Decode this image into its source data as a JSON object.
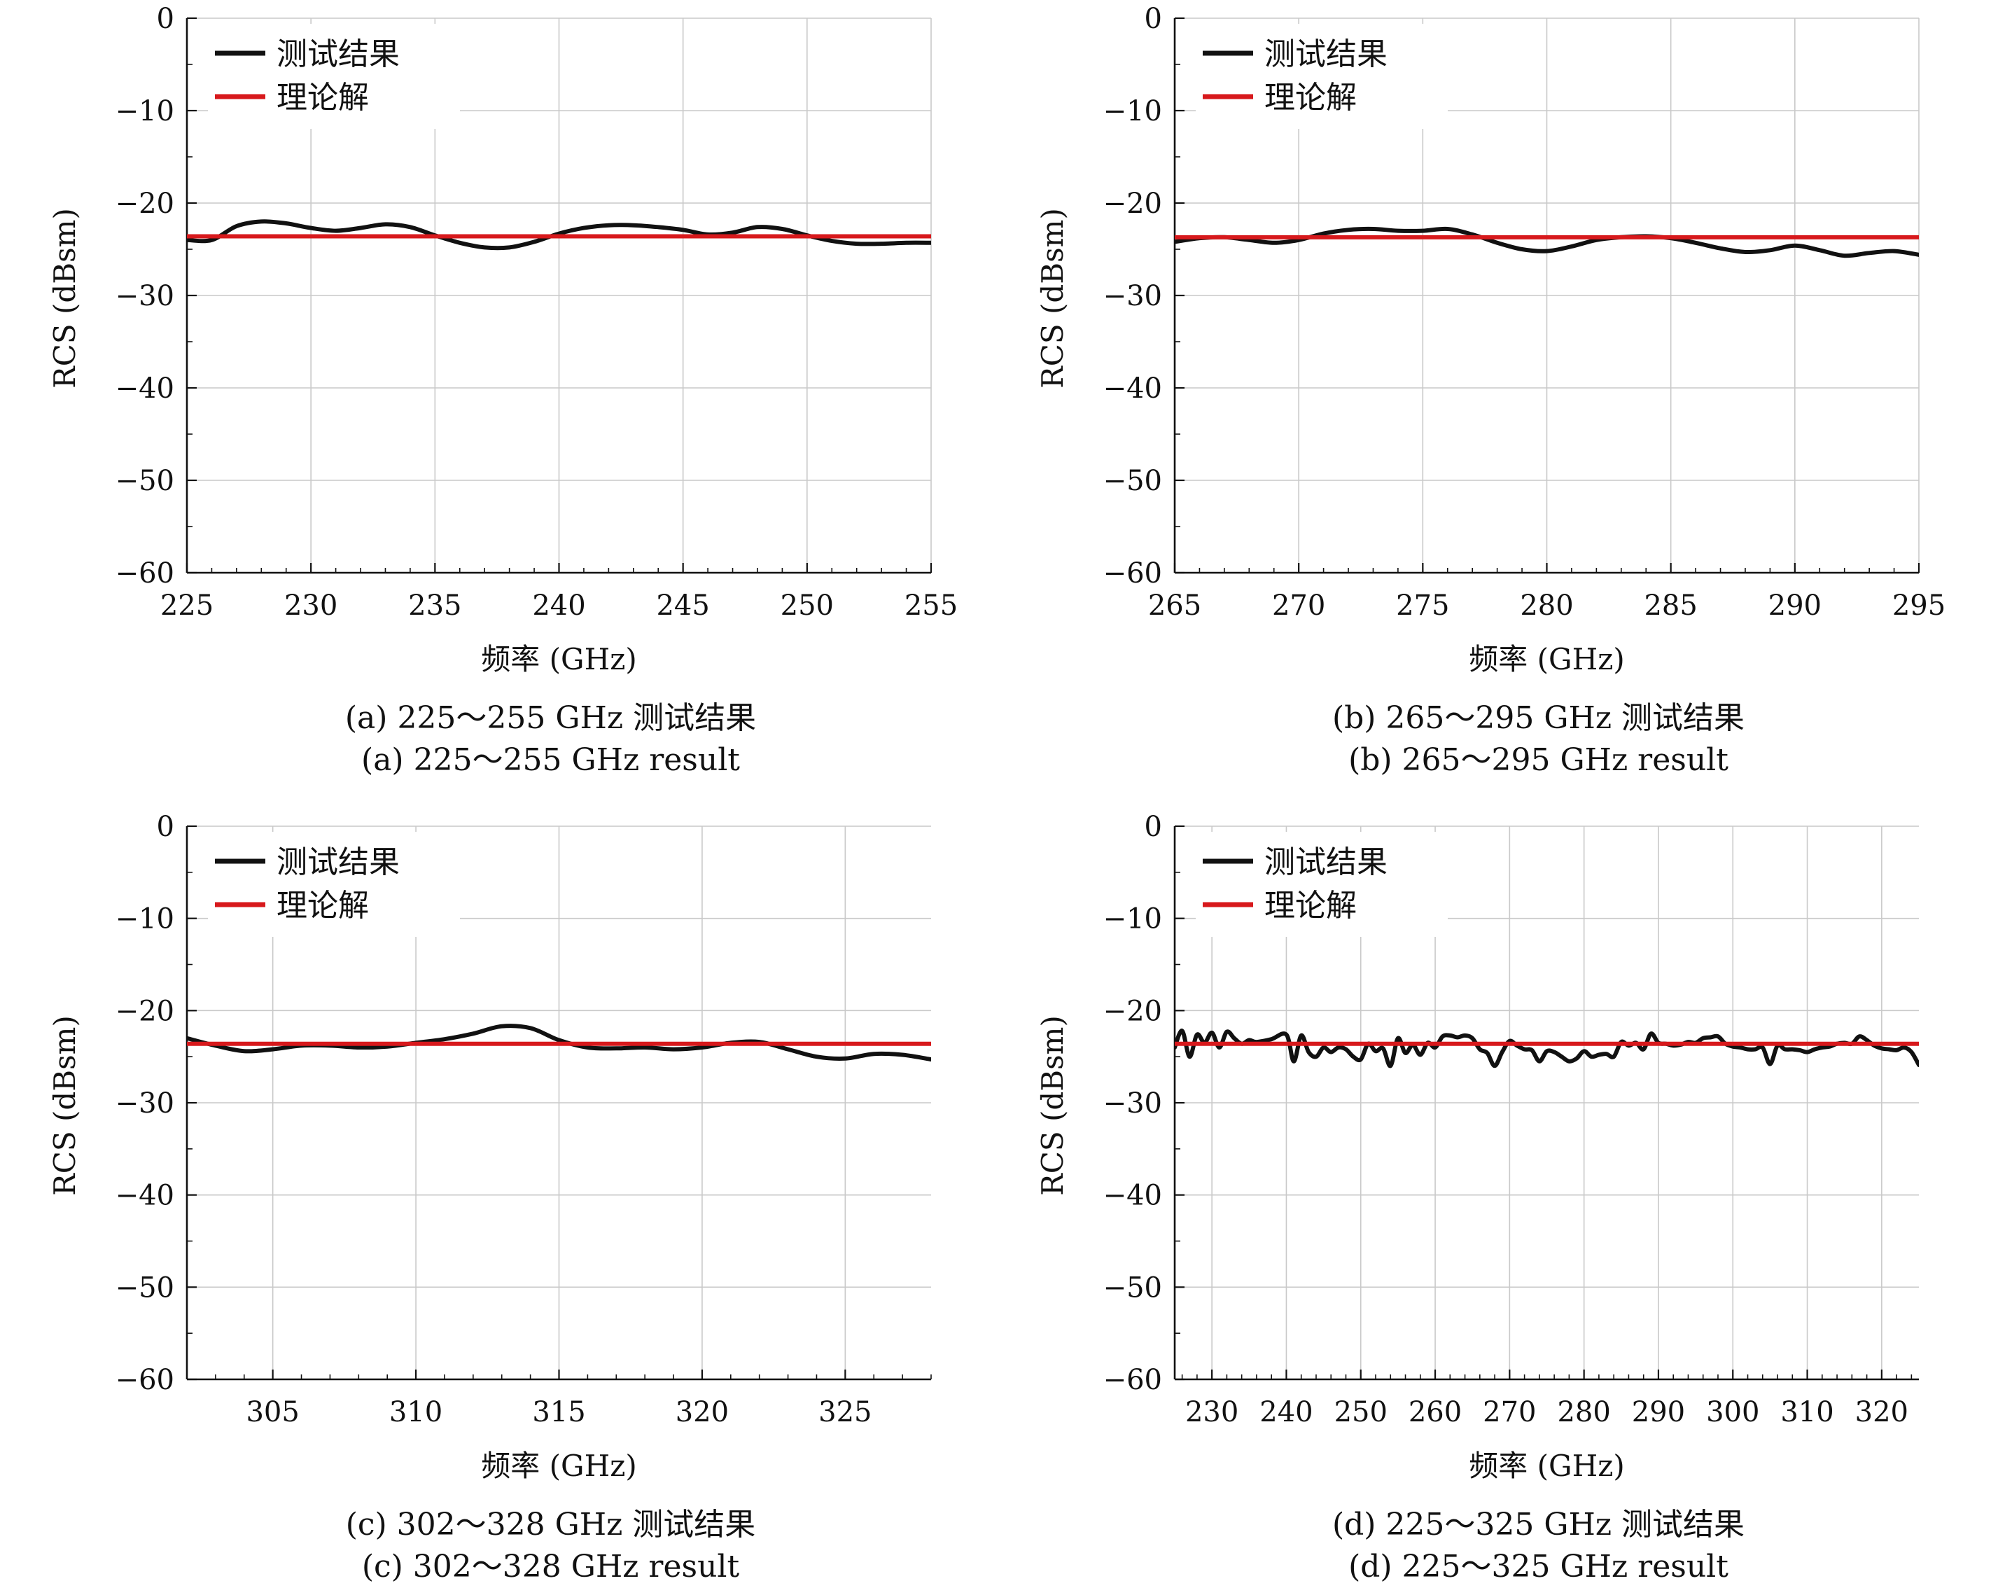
{
  "chart_data": [
    {
      "id": "a",
      "type": "line",
      "xlabel": "频率 (GHz)",
      "ylabel": "RCS (dBsm)",
      "xlim": [
        225,
        255
      ],
      "ylim": [
        -60,
        0
      ],
      "xticks": [
        225,
        230,
        235,
        240,
        245,
        250,
        255
      ],
      "yticks": [
        0,
        -10,
        -20,
        -30,
        -40,
        -50,
        -60
      ],
      "grid": true,
      "legend_position": "top-left",
      "caption_cn": "(a) 225～255 GHz 测试结果",
      "caption_en": "(a) 225～255 GHz result",
      "series": [
        {
          "name": "测试结果",
          "color": "#111111",
          "x": [
            225,
            226,
            227,
            228,
            229,
            230,
            231,
            232,
            233,
            234,
            235,
            236,
            237,
            238,
            239,
            240,
            241,
            242,
            243,
            244,
            245,
            246,
            247,
            248,
            249,
            250,
            251,
            252,
            253,
            254,
            255
          ],
          "y": [
            -24,
            -24,
            -22.5,
            -22,
            -22.2,
            -22.7,
            -23,
            -22.7,
            -22.3,
            -22.6,
            -23.5,
            -24.3,
            -24.8,
            -24.8,
            -24.2,
            -23.3,
            -22.7,
            -22.4,
            -22.4,
            -22.6,
            -22.9,
            -23.4,
            -23.2,
            -22.6,
            -22.8,
            -23.5,
            -24.1,
            -24.4,
            -24.4,
            -24.3,
            -24.3
          ]
        },
        {
          "name": "理论解",
          "color": "#d7191c",
          "x": [
            225,
            255
          ],
          "y": [
            -23.6,
            -23.6
          ]
        }
      ]
    },
    {
      "id": "b",
      "type": "line",
      "xlabel": "频率 (GHz)",
      "ylabel": "RCS (dBsm)",
      "xlim": [
        265,
        295
      ],
      "ylim": [
        -60,
        0
      ],
      "xticks": [
        265,
        270,
        275,
        280,
        285,
        290,
        295
      ],
      "yticks": [
        0,
        -10,
        -20,
        -30,
        -40,
        -50,
        -60
      ],
      "grid": true,
      "legend_position": "top-left",
      "caption_cn": "(b) 265～295 GHz 测试结果",
      "caption_en": "(b) 265～295 GHz result",
      "series": [
        {
          "name": "测试结果",
          "color": "#111111",
          "x": [
            265,
            266,
            267,
            268,
            269,
            270,
            271,
            272,
            273,
            274,
            275,
            276,
            277,
            278,
            279,
            280,
            281,
            282,
            283,
            284,
            285,
            286,
            287,
            288,
            289,
            290,
            291,
            292,
            293,
            294,
            295
          ],
          "y": [
            -24.2,
            -23.8,
            -23.7,
            -24,
            -24.3,
            -24,
            -23.3,
            -22.9,
            -22.8,
            -23,
            -23,
            -22.8,
            -23.4,
            -24.3,
            -25,
            -25.2,
            -24.7,
            -24,
            -23.7,
            -23.6,
            -23.8,
            -24.3,
            -24.9,
            -25.3,
            -25.1,
            -24.6,
            -25.1,
            -25.7,
            -25.4,
            -25.2,
            -25.6
          ]
        },
        {
          "name": "理论解",
          "color": "#d7191c",
          "x": [
            265,
            295
          ],
          "y": [
            -23.7,
            -23.7
          ]
        }
      ]
    },
    {
      "id": "c",
      "type": "line",
      "xlabel": "频率 (GHz)",
      "ylabel": "RCS (dBsm)",
      "xlim": [
        302,
        328
      ],
      "ylim": [
        -60,
        0
      ],
      "xticks": [
        305,
        310,
        315,
        320,
        325
      ],
      "yticks": [
        0,
        -10,
        -20,
        -30,
        -40,
        -50,
        -60
      ],
      "grid": true,
      "legend_position": "top-left",
      "caption_cn": "(c) 302～328 GHz 测试结果",
      "caption_en": "(c) 302～328 GHz result",
      "series": [
        {
          "name": "测试结果",
          "color": "#111111",
          "x": [
            302,
            303,
            304,
            305,
            306,
            307,
            308,
            309,
            310,
            311,
            312,
            313,
            314,
            315,
            316,
            317,
            318,
            319,
            320,
            321,
            322,
            323,
            324,
            325,
            326,
            327,
            328
          ],
          "y": [
            -23,
            -23.8,
            -24.4,
            -24.2,
            -23.8,
            -23.8,
            -24,
            -23.9,
            -23.5,
            -23.1,
            -22.5,
            -21.7,
            -21.9,
            -23.2,
            -24,
            -24.1,
            -24,
            -24.2,
            -24,
            -23.5,
            -23.4,
            -24.2,
            -25,
            -25.2,
            -24.7,
            -24.8,
            -25.3
          ]
        },
        {
          "name": "理论解",
          "color": "#d7191c",
          "x": [
            302,
            328
          ],
          "y": [
            -23.6,
            -23.6
          ]
        }
      ]
    },
    {
      "id": "d",
      "type": "line",
      "xlabel": "频率 (GHz)",
      "ylabel": "RCS (dBsm)",
      "xlim": [
        225,
        325
      ],
      "ylim": [
        -60,
        0
      ],
      "xticks": [
        230,
        240,
        250,
        260,
        270,
        280,
        290,
        300,
        310,
        320
      ],
      "yticks": [
        0,
        -10,
        -20,
        -30,
        -40,
        -50,
        -60
      ],
      "grid": true,
      "legend_position": "top-left",
      "caption_cn": "(d) 225～325 GHz 测试结果",
      "caption_en": "(d) 225～325 GHz result",
      "series": [
        {
          "name": "测试结果",
          "color": "#111111",
          "x": [
            225,
            226,
            227,
            228,
            229,
            230,
            231,
            232,
            233,
            234,
            235,
            236,
            238,
            240,
            241,
            242,
            243,
            244,
            245,
            246,
            247,
            248,
            249,
            250,
            251,
            252,
            253,
            254,
            255,
            256,
            257,
            258,
            259,
            260,
            261,
            262,
            263,
            264,
            265,
            266,
            267,
            268,
            269,
            270,
            271,
            272,
            273,
            274,
            275,
            276,
            277,
            278,
            279,
            280,
            281,
            282,
            283,
            284,
            285,
            286,
            287,
            288,
            289,
            290,
            291,
            292,
            293,
            294,
            295,
            296,
            297,
            298,
            299,
            300,
            301,
            302,
            303,
            304,
            305,
            306,
            307,
            308,
            309,
            310,
            311,
            312,
            313,
            314,
            315,
            316,
            317,
            318,
            319,
            320,
            321,
            322,
            323,
            324,
            325
          ],
          "y": [
            -24,
            -22.2,
            -25,
            -22.6,
            -23.5,
            -22.4,
            -24,
            -22.3,
            -23,
            -23.6,
            -23.2,
            -23.4,
            -23.1,
            -22.6,
            -25.5,
            -22.7,
            -24.5,
            -25,
            -24,
            -24.5,
            -24,
            -24.2,
            -25,
            -25.3,
            -23.6,
            -24.4,
            -24.1,
            -26,
            -23,
            -24.6,
            -23.7,
            -24.8,
            -23.5,
            -24,
            -22.8,
            -22.7,
            -22.9,
            -22.7,
            -23,
            -24.2,
            -24.6,
            -26,
            -24.5,
            -23.3,
            -23.8,
            -24.2,
            -24.3,
            -25.5,
            -24.4,
            -24.5,
            -25,
            -25.5,
            -25.2,
            -24.4,
            -25,
            -24.8,
            -24.7,
            -25,
            -23.4,
            -23.8,
            -23.5,
            -24.2,
            -22.5,
            -23.5,
            -23.6,
            -23.8,
            -23.7,
            -23.4,
            -23.5,
            -23,
            -22.9,
            -22.8,
            -23.6,
            -23.9,
            -24,
            -24.2,
            -24.2,
            -24,
            -25.8,
            -23.8,
            -24.2,
            -24.2,
            -24.3,
            -24.5,
            -24.2,
            -24,
            -23.9,
            -23.6,
            -23.5,
            -23.6,
            -22.8,
            -23.2,
            -23.8,
            -24.1,
            -24.2,
            -24.3,
            -24.0,
            -24.5,
            -25.9
          ]
        },
        {
          "name": "理论解",
          "color": "#d7191c",
          "x": [
            225,
            325
          ],
          "y": [
            -23.6,
            -23.6
          ]
        }
      ]
    }
  ]
}
